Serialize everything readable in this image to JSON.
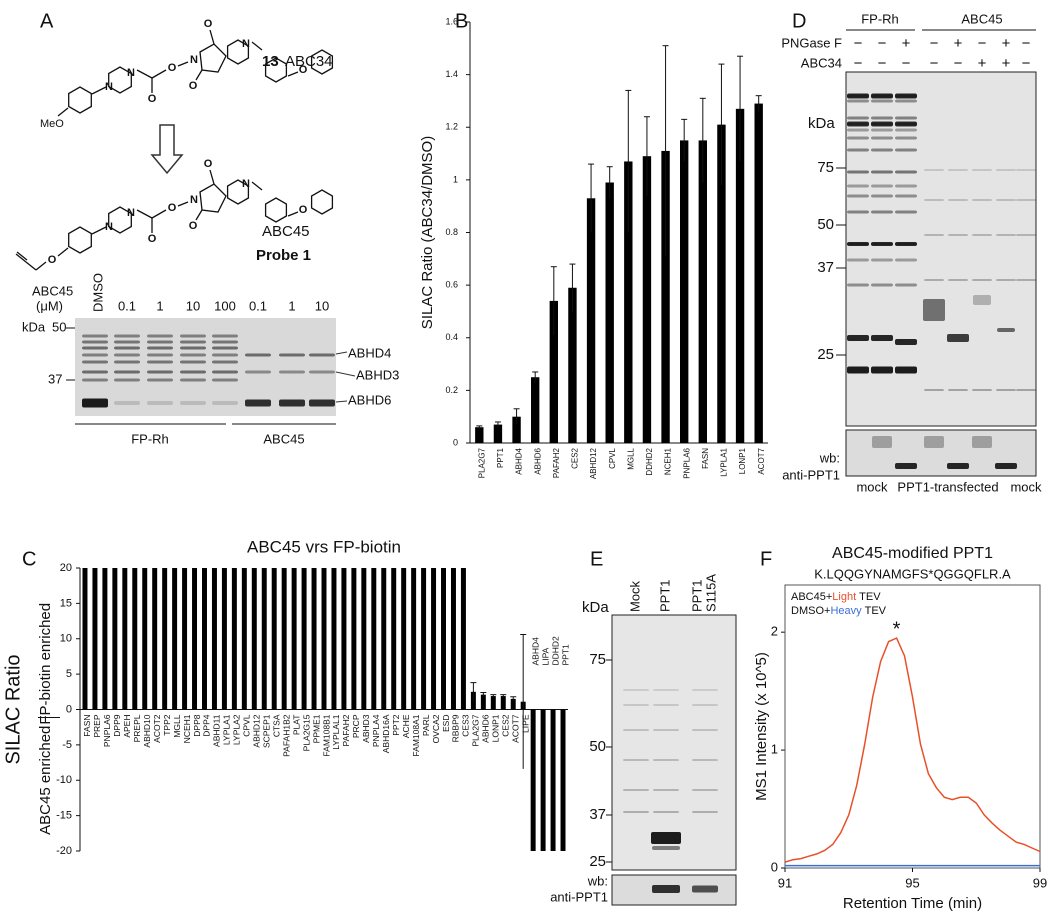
{
  "panel_labels": [
    "A",
    "B",
    "C",
    "D",
    "E",
    "F"
  ],
  "panel_a": {
    "compound1_number": "13",
    "compound1_name": "ABC34",
    "methoxy": "MeO",
    "compound2_name": "ABC45",
    "compound2_label": "Probe 1",
    "atoms": {
      "O": "O",
      "N": "N"
    },
    "gel": {
      "conc_label": [
        "ABC45",
        "(μM)"
      ],
      "lanes": [
        "DMSO",
        "0.1",
        "1",
        "10",
        "100",
        "0.1",
        "1",
        "10"
      ],
      "kda": "kDa",
      "markers": [
        "50",
        "37"
      ],
      "bands": [
        "ABHD4",
        "ABHD3",
        "ABHD6"
      ],
      "groups": [
        "FP-Rh",
        "ABC45"
      ]
    }
  },
  "panel_d": {
    "groups": [
      "FP-Rh",
      "ABC45"
    ],
    "row_labels": [
      "PNGase F",
      "ABC34"
    ],
    "signs": [
      [
        "−",
        "−",
        "+",
        "−",
        "+",
        "−",
        "+",
        "−"
      ],
      [
        "−",
        "−",
        "−",
        "−",
        "−",
        "+",
        "+",
        "−"
      ]
    ],
    "kda": "kDa",
    "markers": [
      "75",
      "50",
      "37",
      "25"
    ],
    "wb": "wb:",
    "antibody": "anti-PPT1",
    "bottom": [
      "mock",
      "PPT1-transfected",
      "mock"
    ]
  },
  "panel_e": {
    "lanes": [
      "Mock",
      "PPT1",
      "PPT1",
      "S115A"
    ],
    "kda": "kDa",
    "markers": [
      "75",
      "50",
      "37",
      "25"
    ],
    "wb": "wb:",
    "antibody": "anti-PPT1"
  },
  "chart_data": [
    {
      "type": "bar",
      "ylabel": "SILAC Ratio (ABC34/DMSO)",
      "categories": [
        "PLA2G7",
        "PPT1",
        "ABHD4",
        "ABHD6",
        "PAFAH2",
        "CES2",
        "ABHD12",
        "CPVL",
        "MGLL",
        "DDHD2",
        "NCEH1",
        "PNPLA6",
        "FASN",
        "LYPLA1",
        "LONP1",
        "ACOT7"
      ],
      "values": [
        0.06,
        0.07,
        0.1,
        0.25,
        0.54,
        0.59,
        0.93,
        0.99,
        1.07,
        1.09,
        1.11,
        1.15,
        1.15,
        1.21,
        1.27,
        1.29
      ],
      "errors": [
        0.005,
        0.01,
        0.03,
        0.02,
        0.13,
        0.09,
        0.13,
        0.06,
        0.27,
        0.15,
        0.4,
        0.08,
        0.16,
        0.23,
        0.2,
        0.03
      ],
      "color": "#000000",
      "ylim": [
        0,
        1.6
      ],
      "yticks": [
        0,
        0.2,
        0.4,
        0.6,
        0.8,
        1,
        1.2,
        1.4,
        1.6
      ]
    },
    {
      "type": "bar",
      "title": "ABC45 vrs FP-biotin",
      "ylabel": "SILAC Ratio",
      "side_labels": [
        "FP-biotin enriched",
        "ABC45 enriched"
      ],
      "categories": [
        "FASN",
        "PREP",
        "PNPLA6",
        "DPP9",
        "APEH",
        "PREPL",
        "ABHD10",
        "ACOT2",
        "TPP2",
        "MGLL",
        "NCEH1",
        "DPP8",
        "DPP4",
        "ABHD11",
        "LYPLA1",
        "LYPLA2",
        "CPVL",
        "ABHD12",
        "SCPEP1",
        "CTSA",
        "PAFAH1B2",
        "PLAT",
        "PLA2G15",
        "PPME1",
        "FAM108B1",
        "LYPLAL1",
        "PAFAH2",
        "PRCP",
        "ABHD3",
        "PNPLA4",
        "ABHD16A",
        "PPT2",
        "ACHE",
        "FAM108A1",
        "PARL",
        "OVCA2",
        "ESD",
        "RBBP9",
        "CES3",
        "PLA2G7",
        "ABHD6",
        "LONP1",
        "CES2",
        "ACOT7",
        "LIPE",
        "ABHD4",
        "LIPA",
        "DDHD2",
        "PPT1"
      ],
      "values": [
        20,
        20,
        20,
        20,
        20,
        20,
        20,
        20,
        20,
        20,
        20,
        20,
        20,
        20,
        20,
        20,
        20,
        20,
        20,
        20,
        20,
        20,
        20,
        20,
        20,
        20,
        20,
        20,
        20,
        20,
        20,
        20,
        20,
        20,
        20,
        20,
        20,
        20,
        20,
        2.5,
        2.1,
        1.9,
        1.9,
        1.5,
        1.1,
        -20,
        -20,
        -20,
        -20
      ],
      "errors": [
        null,
        null,
        null,
        null,
        null,
        null,
        null,
        null,
        null,
        null,
        null,
        null,
        null,
        null,
        null,
        null,
        null,
        null,
        null,
        null,
        null,
        null,
        null,
        null,
        null,
        null,
        null,
        null,
        null,
        null,
        null,
        null,
        null,
        null,
        null,
        null,
        null,
        null,
        null,
        1.3,
        0.3,
        0.2,
        0.2,
        0.3,
        9.5,
        null,
        null,
        null,
        null
      ],
      "color": "#000000",
      "ylim": [
        -20,
        20
      ],
      "yticks": [
        -20,
        -15,
        -10,
        -5,
        0,
        5,
        10,
        15,
        20
      ]
    },
    {
      "type": "line",
      "title": "ABC45-modified PPT1",
      "subtitle": "K.LQQGYNAMGFS*QGGQFLR.A",
      "xlabel": "Retention Time (min)",
      "ylabel": "MS1 Intensity (x 10^5)",
      "peak_marker": "*",
      "x": [
        91,
        91.25,
        91.5,
        91.75,
        92,
        92.25,
        92.5,
        92.75,
        93,
        93.25,
        93.5,
        93.75,
        94,
        94.25,
        94.5,
        94.75,
        95,
        95.25,
        95.5,
        95.75,
        96,
        96.25,
        96.5,
        96.75,
        97,
        97.25,
        97.5,
        97.75,
        98,
        98.25,
        98.5,
        98.75,
        99
      ],
      "series": [
        {
          "name": "Light",
          "prefix": "ABC45+",
          "suffix": "TEV",
          "color": "#e8502a",
          "values": [
            0.05,
            0.07,
            0.08,
            0.1,
            0.12,
            0.15,
            0.2,
            0.3,
            0.45,
            0.7,
            1.05,
            1.45,
            1.75,
            1.92,
            1.95,
            1.8,
            1.45,
            1.05,
            0.8,
            0.68,
            0.6,
            0.58,
            0.6,
            0.6,
            0.55,
            0.45,
            0.38,
            0.32,
            0.27,
            0.22,
            0.2,
            0.17,
            0.14
          ]
        },
        {
          "name": "Heavy",
          "prefix": "DMSO+",
          "suffix": "TEV",
          "color": "#3a6fd8",
          "values": [
            0.02,
            0.02,
            0.02,
            0.02,
            0.02,
            0.02,
            0.02,
            0.02,
            0.02,
            0.02,
            0.02,
            0.02,
            0.02,
            0.02,
            0.02,
            0.02,
            0.02,
            0.02,
            0.02,
            0.02,
            0.02,
            0.02,
            0.02,
            0.02,
            0.02,
            0.02,
            0.02,
            0.02,
            0.02,
            0.02,
            0.02,
            0.02,
            0.02
          ]
        }
      ],
      "xlim": [
        91,
        99
      ],
      "xticks": [
        91,
        95,
        99
      ],
      "ylim": [
        0,
        2.4
      ],
      "yticks": [
        0,
        1,
        2
      ]
    }
  ]
}
